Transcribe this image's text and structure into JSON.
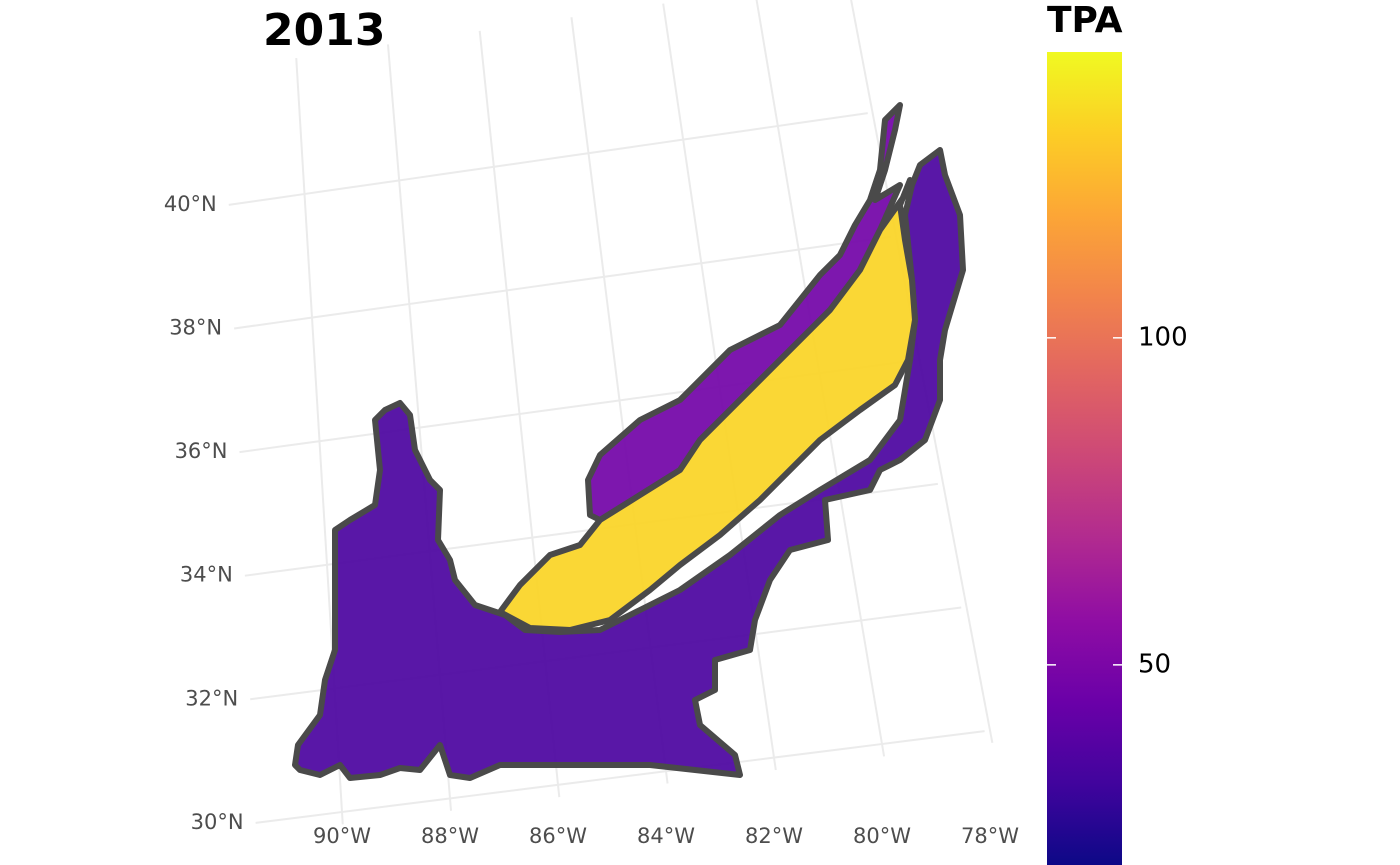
{
  "chart_data": {
    "type": "map",
    "title": "2013",
    "values": [
      35,
      47,
      133
    ],
    "legend_title": "TPA",
    "clim": [
      19.4,
      143.7
    ],
    "cticks": [
      50,
      100
    ],
    "colormap": [
      "#0d0887",
      "#41049d",
      "#6a00a8",
      "#8f0da4",
      "#b12a90",
      "#cc4778",
      "#e16462",
      "#f2844b",
      "#fca636",
      "#fcce25",
      "#f0f921"
    ],
    "latticks": [
      {
        "value": 30,
        "label": "30°N"
      },
      {
        "value": 32,
        "label": "32°N"
      },
      {
        "value": 34,
        "label": "34°N"
      },
      {
        "value": 36,
        "label": "36°N"
      },
      {
        "value": 38,
        "label": "38°N"
      },
      {
        "value": 40,
        "label": "40°N"
      }
    ],
    "lonticks": [
      {
        "value": -90,
        "label": "90°W"
      },
      {
        "value": -88,
        "label": "88°W"
      },
      {
        "value": -86,
        "label": "86°W"
      },
      {
        "value": -84,
        "label": "84°W"
      },
      {
        "value": -82,
        "label": "82°W"
      },
      {
        "value": -80,
        "label": "80°W"
      },
      {
        "value": -78,
        "label": "78°W"
      }
    ],
    "grid": true
  }
}
